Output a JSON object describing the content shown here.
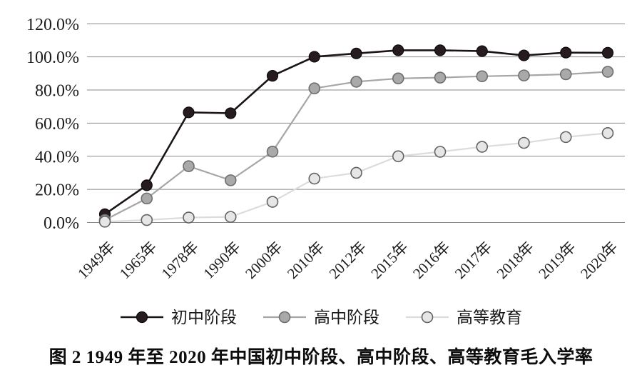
{
  "figure": {
    "caption": "图 2  1949 年至 2020 年中国初中阶段、高中阶段、高等教育毛入学率",
    "background_color": "#ffffff",
    "text_color": "#1c1c1c",
    "gridline_color": "#8a8a8a"
  },
  "chart_data": {
    "type": "line",
    "title": "",
    "xlabel": "",
    "ylabel": "",
    "ylim": [
      0,
      120
    ],
    "grid": true,
    "legend_position": "bottom",
    "y_tick_labels": [
      "0.0%",
      "20.0%",
      "40.0%",
      "60.0%",
      "80.0%",
      "100.0%",
      "120.0%"
    ],
    "categories": [
      "1949年",
      "1965年",
      "1978年",
      "1990年",
      "2000年",
      "2010年",
      "2012年",
      "2015年",
      "2016年",
      "2017年",
      "2018年",
      "2019年",
      "2020年"
    ],
    "series": [
      {
        "name": "初中阶段",
        "values": [
          5.0,
          22.5,
          66.5,
          66.0,
          88.6,
          100.1,
          102.1,
          104.0,
          104.0,
          103.5,
          100.9,
          102.6,
          102.5
        ],
        "line_color": "#1b1418",
        "marker_fill": "#261c1f",
        "marker_stroke": "#0d0a0b"
      },
      {
        "name": "高中阶段",
        "values": [
          1.5,
          14.5,
          34.0,
          25.5,
          42.8,
          81.0,
          85.0,
          87.0,
          87.5,
          88.3,
          88.8,
          89.5,
          91.0
        ],
        "line_color": "#a6a6a6",
        "marker_fill": "#a9a9a9",
        "marker_stroke": "#6e6e6e"
      },
      {
        "name": "高等教育",
        "values": [
          0.5,
          1.5,
          3.0,
          3.4,
          12.5,
          26.5,
          30.0,
          40.0,
          42.7,
          45.7,
          48.1,
          51.6,
          54.0
        ],
        "line_color": "#dcdcdc",
        "marker_fill": "#e6e6e6",
        "marker_stroke": "#636363"
      }
    ]
  }
}
